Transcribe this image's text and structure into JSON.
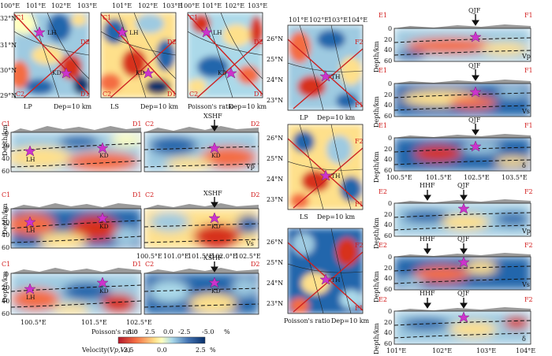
{
  "colors": {
    "red": "#d7301f",
    "orange": "#f46d43",
    "yellow": "#fee08b",
    "pale": "#ffffbf",
    "lightblue": "#9ecae1",
    "blue": "#2166ac",
    "darkblue": "#08306b",
    "star": "#cc33cc",
    "profile_line": "#cc2222",
    "topography": "#9a9a9a"
  },
  "star_icon": "star-icon",
  "arrow_icon": "arrow-down-icon",
  "map_panels": [
    {
      "id": "lp1",
      "type": "LP",
      "dep": "Dep=10 km",
      "lon_ticks": [
        "100°E",
        "101°E",
        "102°E",
        "103°E"
      ],
      "lat_ticks": [
        "32°N",
        "31°N",
        "30°N",
        "29°N"
      ],
      "labels": [
        "C1",
        "C2",
        "D1",
        "D2",
        "LH",
        "KD"
      ]
    },
    {
      "id": "ls1",
      "type": "LS",
      "dep": "Dep=10 km",
      "lon_ticks": [
        "101°E",
        "102°E",
        "103°E"
      ],
      "lat_ticks": [],
      "labels": [
        "C1",
        "C2",
        "D1",
        "D2",
        "LH",
        "KD"
      ]
    },
    {
      "id": "pr1",
      "type": "Poisson's ratio",
      "dep": "Dep=10 km",
      "lon_ticks": [
        "100°E",
        "101°E",
        "102°E",
        "103°E"
      ],
      "lat_ticks": [],
      "labels": [
        "C1",
        "C2",
        "D1",
        "D2",
        "LH",
        "KD"
      ]
    },
    {
      "id": "lp2",
      "type": "LP",
      "dep": "Dep=10 km",
      "lon_ticks": [
        "101°E",
        "102°E",
        "103°E",
        "104°E"
      ],
      "lat_ticks": [
        "26°N",
        "25°N",
        "24°N",
        "23°N"
      ],
      "labels": [
        "E1",
        "E2",
        "F1",
        "F2",
        "TH"
      ]
    },
    {
      "id": "ls2",
      "type": "LS",
      "dep": "Dep=10 km",
      "lon_ticks": [],
      "lat_ticks": [
        "26°N",
        "25°N",
        "24°N",
        "23°N"
      ],
      "labels": [
        "E1",
        "E2",
        "F1",
        "F2",
        "TH"
      ]
    },
    {
      "id": "pr2",
      "type": "Poisson's ratio",
      "dep": "Dep=10 km",
      "lon_ticks": [],
      "lat_ticks": [
        "26°N",
        "25°N",
        "24°N",
        "23°N"
      ],
      "labels": [
        "E1",
        "E2",
        "F1",
        "F2",
        "TH"
      ]
    }
  ],
  "sections_left": [
    {
      "id": "c1d1_vp",
      "ends": [
        "C1",
        "D1"
      ],
      "ylabel": "Depth/km",
      "yticks": [
        "0",
        "20",
        "40",
        "60"
      ],
      "sites": [
        "LH",
        "KD"
      ],
      "param": ""
    },
    {
      "id": "c2d2_vp",
      "ends": [
        "C2",
        "D2"
      ],
      "fault": "XSHF",
      "sites": [
        "KD"
      ],
      "param": "Vp"
    },
    {
      "id": "c1d1_vs",
      "ends": [
        "C1",
        "D1"
      ],
      "ylabel": "Depth/km",
      "yticks": [
        "0",
        "20",
        "40",
        "60"
      ],
      "sites": [
        "LH",
        "KD"
      ],
      "param": ""
    },
    {
      "id": "c2d2_vs",
      "ends": [
        "C2",
        "D2"
      ],
      "fault": "XSHF",
      "sites": [
        "KD"
      ],
      "param": "Vs",
      "xticks": [
        "100.5°E",
        "101.0°E",
        "101.5°E",
        "102.0°E",
        "102.5°E"
      ]
    },
    {
      "id": "c1d1_pr",
      "ends": [
        "C1",
        "D1"
      ],
      "ylabel": "Depth/km",
      "yticks": [
        "0",
        "20",
        "40",
        "60"
      ],
      "sites": [
        "LH",
        "KD"
      ],
      "param": "",
      "xticks": [
        "100.5°E",
        "101.5°E",
        "102.5°E"
      ]
    },
    {
      "id": "c2d2_pr",
      "ends": [
        "C2",
        "D2"
      ],
      "fault": "XSHF",
      "sites": [
        "KD"
      ],
      "param": ""
    }
  ],
  "sections_right": [
    {
      "id": "e1f1_vp",
      "ends": [
        "E1",
        "F1"
      ],
      "fault": "QJF",
      "param": "Vp",
      "yticks": [
        "0",
        "20",
        "40",
        "60"
      ]
    },
    {
      "id": "e1f1_vs",
      "ends": [
        "E1",
        "F1"
      ],
      "fault": "QJF",
      "param": "Vs",
      "yticks": [
        "0",
        "20",
        "40",
        "60"
      ]
    },
    {
      "id": "e1f1_pr",
      "ends": [
        "E1",
        "F1"
      ],
      "fault": "QJF",
      "param": "δ",
      "yticks": [
        "0",
        "20",
        "40",
        "60"
      ],
      "xticks": [
        "100.5°E",
        "101.5°E",
        "102.5°E",
        "103.5°E"
      ]
    },
    {
      "id": "e2f2_vp",
      "ends": [
        "E2",
        "F2"
      ],
      "faults": [
        "HHF",
        "QJF"
      ],
      "param": "Vp",
      "yticks": [
        "0",
        "20",
        "40",
        "60"
      ]
    },
    {
      "id": "e2f2_vs",
      "ends": [
        "E2",
        "F2"
      ],
      "faults": [
        "HHF",
        "QJF"
      ],
      "param": "Vs",
      "yticks": [
        "0",
        "20",
        "40",
        "60"
      ]
    },
    {
      "id": "e2f2_pr",
      "ends": [
        "E2",
        "F2"
      ],
      "faults": [
        "HHF",
        "QJF"
      ],
      "param": "δ",
      "yticks": [
        "0",
        "20",
        "40",
        "60"
      ],
      "xticks": [
        "101°E",
        "102°E",
        "103°E",
        "104°E"
      ]
    }
  ],
  "right_ylabel": "Depth/km",
  "colorbar": {
    "pr_ticks": [
      "5.0",
      "2.5",
      "0.0",
      "-2.5",
      "-5.0"
    ],
    "pr_label": "Poisson's ratio",
    "pr_unit": "%",
    "vel_ticks": [
      "-2.5",
      "0.0",
      "2.5"
    ],
    "vel_label": "Velocity(",
    "vel_vars": "Vp,Vs",
    "vel_close": ")",
    "vel_unit": "%"
  }
}
